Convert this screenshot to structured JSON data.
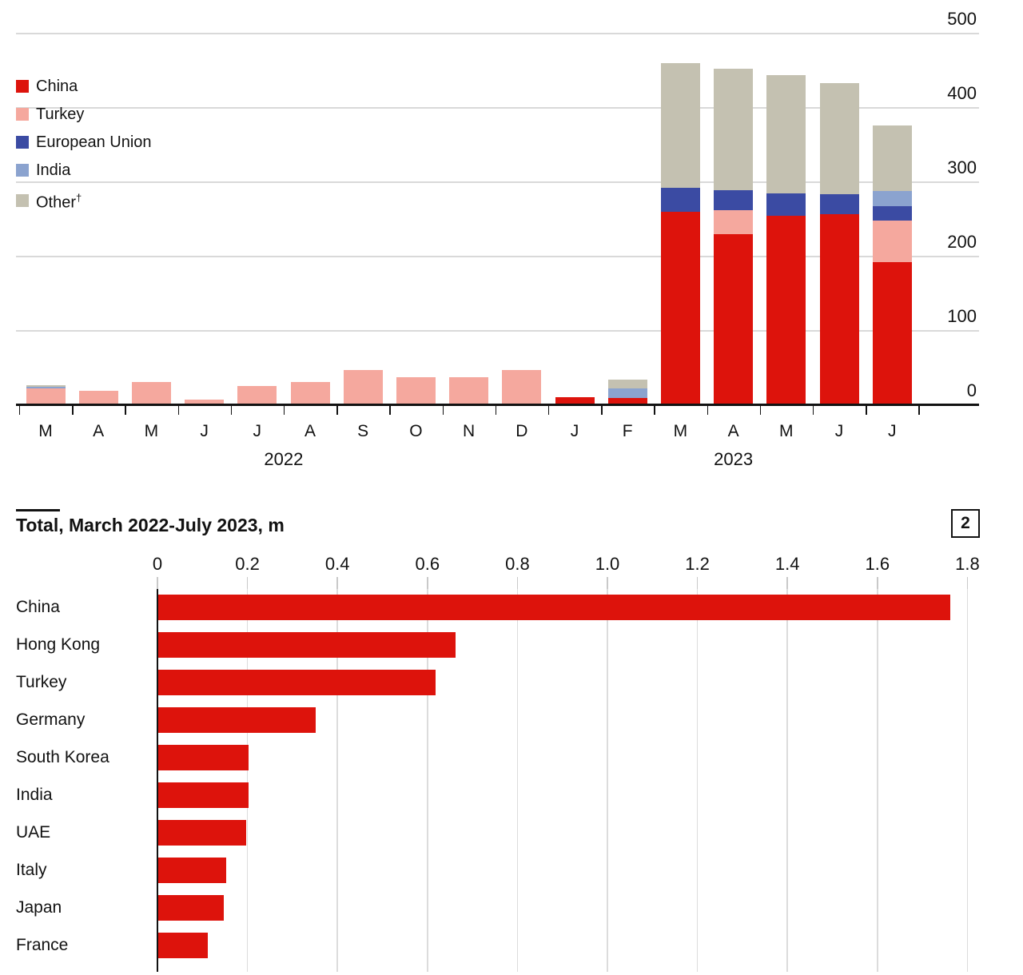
{
  "colors": {
    "china": "#dd130c",
    "turkey": "#f5a89e",
    "european_union": "#3b4ba3",
    "india": "#8ba3cf",
    "other": "#c4c1b1",
    "axis": "#121212",
    "gridline": "#d9d9d9",
    "text": "#121212"
  },
  "chart_data": [
    {
      "id": "monthly-stacked",
      "type": "bar",
      "subtype": "stacked-column",
      "title": "",
      "legend": [
        {
          "key": "china",
          "label": "China"
        },
        {
          "key": "turkey",
          "label": "Turkey"
        },
        {
          "key": "european_union",
          "label": "European Union"
        },
        {
          "key": "india",
          "label": "India"
        },
        {
          "key": "other",
          "label": "Other",
          "sup": "†"
        }
      ],
      "x_months": [
        "M",
        "A",
        "M",
        "J",
        "J",
        "A",
        "S",
        "O",
        "N",
        "D",
        "J",
        "F",
        "M",
        "A",
        "M",
        "J",
        "J"
      ],
      "year_groups": [
        {
          "label": "2022",
          "from": 0,
          "to": 9
        },
        {
          "label": "2023",
          "from": 10,
          "to": 16
        }
      ],
      "y_ticks": [
        0,
        100,
        200,
        300,
        400,
        500
      ],
      "ylim": [
        0,
        500
      ],
      "grid": "horizontal",
      "legend_position": "top-left",
      "series": [
        {
          "name": "China",
          "key": "china",
          "values": [
            0,
            0,
            0,
            0,
            0,
            0,
            0,
            0,
            0,
            0,
            10,
            9,
            259,
            229,
            254,
            256,
            191
          ]
        },
        {
          "name": "Turkey",
          "key": "turkey",
          "values": [
            21,
            18,
            30,
            6,
            25,
            30,
            46,
            37,
            37,
            46,
            0,
            0,
            0,
            32,
            0,
            0,
            56
          ]
        },
        {
          "name": "European Union",
          "key": "european_union",
          "values": [
            0,
            0,
            0,
            0,
            0,
            0,
            0,
            0,
            0,
            0,
            0,
            0,
            32,
            27,
            30,
            27,
            20
          ]
        },
        {
          "name": "India",
          "key": "india",
          "values": [
            3,
            0,
            0,
            0,
            0,
            0,
            0,
            0,
            0,
            0,
            0,
            13,
            0,
            0,
            0,
            0,
            20
          ]
        },
        {
          "name": "Other",
          "key": "other",
          "values": [
            2,
            0,
            0,
            0,
            0,
            0,
            0,
            0,
            0,
            0,
            0,
            11,
            168,
            164,
            159,
            149,
            88
          ]
        }
      ]
    },
    {
      "id": "totals",
      "type": "bar",
      "subtype": "horizontal",
      "title": "Total, March 2022-July 2023, m",
      "panel_number": "2",
      "categories": [
        "China",
        "Hong Kong",
        "Turkey",
        "Germany",
        "South Korea",
        "India",
        "UAE",
        "Italy",
        "Japan",
        "France"
      ],
      "values": [
        1.76,
        0.66,
        0.615,
        0.35,
        0.2,
        0.2,
        0.195,
        0.15,
        0.145,
        0.11
      ],
      "x_ticks": [
        {
          "v": 0,
          "label": "0"
        },
        {
          "v": 0.2,
          "label": "0.2"
        },
        {
          "v": 0.4,
          "label": "0.4"
        },
        {
          "v": 0.6,
          "label": "0.6"
        },
        {
          "v": 0.8,
          "label": "0.8"
        },
        {
          "v": 1.0,
          "label": "1.0"
        },
        {
          "v": 1.2,
          "label": "1.2"
        },
        {
          "v": 1.4,
          "label": "1.4"
        },
        {
          "v": 1.6,
          "label": "1.6"
        },
        {
          "v": 1.8,
          "label": "1.8"
        }
      ],
      "xlim": [
        0,
        1.8
      ],
      "grid": "vertical",
      "bar_color_key": "china"
    }
  ]
}
